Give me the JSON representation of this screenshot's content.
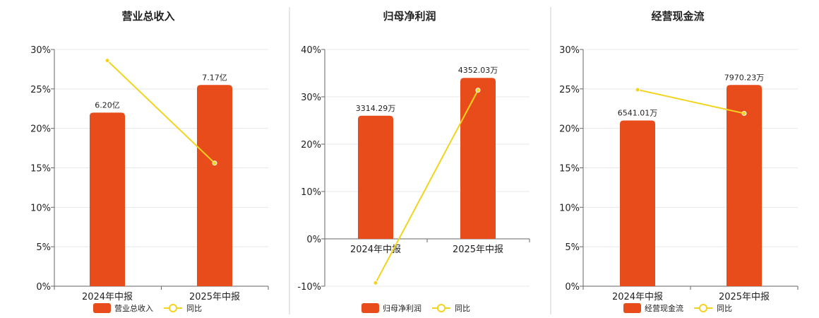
{
  "colors": {
    "bar": "#E84C1B",
    "line": "#F2D41E",
    "divider": "#cccccc",
    "grid": "#e8e8e8",
    "axis": "#666666"
  },
  "chart_data": [
    {
      "type": "bar",
      "title": "营业总收入",
      "categories": [
        "2024年中报",
        "2025年中报"
      ],
      "series": [
        {
          "name": "营业总收入",
          "kind": "bar",
          "values": [
            22.0,
            25.5
          ],
          "labels": [
            "6.20亿",
            "7.17亿"
          ]
        },
        {
          "name": "同比",
          "kind": "line",
          "values": [
            28.6,
            15.6
          ]
        }
      ],
      "ylim": [
        0,
        30
      ],
      "yticks": [
        "0%",
        "5%",
        "10%",
        "15%",
        "20%",
        "25%",
        "30%"
      ],
      "ytick_values": [
        0,
        5,
        10,
        15,
        20,
        25,
        30
      ],
      "grid": true,
      "legend": "bottom"
    },
    {
      "type": "bar",
      "title": "归母净利润",
      "categories": [
        "2024年中报",
        "2025年中报"
      ],
      "series": [
        {
          "name": "归母净利润",
          "kind": "bar",
          "values": [
            26.0,
            34.0
          ],
          "labels": [
            "3314.29万",
            "4352.03万"
          ]
        },
        {
          "name": "同比",
          "kind": "line",
          "values": [
            -9.3,
            31.4
          ]
        }
      ],
      "ylim": [
        -10,
        40
      ],
      "yticks": [
        "-10%",
        "0%",
        "10%",
        "20%",
        "30%",
        "40%"
      ],
      "ytick_values": [
        -10,
        0,
        10,
        20,
        30,
        40
      ],
      "grid": true,
      "legend": "bottom"
    },
    {
      "type": "bar",
      "title": "经营现金流",
      "categories": [
        "2024年中报",
        "2025年中报"
      ],
      "series": [
        {
          "name": "经营现金流",
          "kind": "bar",
          "values": [
            21.0,
            25.5
          ],
          "labels": [
            "6541.01万",
            "7970.23万"
          ]
        },
        {
          "name": "同比",
          "kind": "line",
          "values": [
            24.9,
            21.9
          ]
        }
      ],
      "ylim": [
        0,
        30
      ],
      "yticks": [
        "0%",
        "5%",
        "10%",
        "15%",
        "20%",
        "25%",
        "30%"
      ],
      "ytick_values": [
        0,
        5,
        10,
        15,
        20,
        25,
        30
      ],
      "grid": true,
      "legend": "bottom"
    }
  ]
}
